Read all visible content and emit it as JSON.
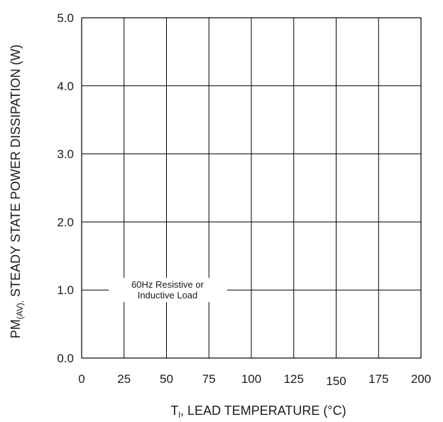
{
  "chart_data": {
    "type": "line",
    "title": "",
    "xlabel_main": "T",
    "xlabel_sub": "l",
    "xlabel_rest": ", LEAD TEMPERATURE (°C)",
    "ylabel_main": "PM",
    "ylabel_sub": "(AV),",
    "ylabel_rest": " STEADY STATE POWER DISSIPATION (W)",
    "xlim": [
      0,
      200
    ],
    "ylim": [
      0,
      5
    ],
    "x_ticks": [
      "0",
      "25",
      "50",
      "75",
      "100",
      "125",
      "150",
      "175",
      "200"
    ],
    "y_ticks": [
      "0.0",
      "1.0",
      "2.0",
      "3.0",
      "4.0",
      "5.0"
    ],
    "grid": true,
    "annotation_line1": "60Hz Resistive or",
    "annotation_line2": "Inductive Load",
    "series": []
  }
}
